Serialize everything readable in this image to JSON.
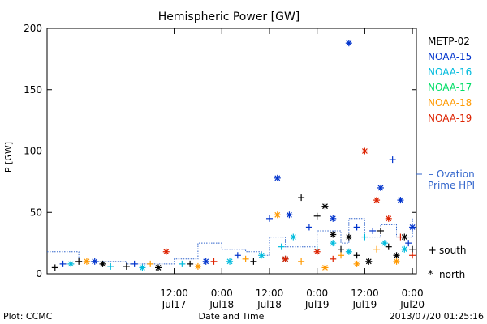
{
  "chart_data": {
    "type": "scatter",
    "title": "Hemispheric Power [GW]",
    "ylabel": "P [GW]",
    "xlabel": "Date and Time",
    "ylim": [
      0,
      200
    ],
    "xlim": [
      "2013-07-16 04:00",
      "2013-07-20 01:00"
    ],
    "yticks": [
      0,
      50,
      100,
      150,
      200
    ],
    "xticks": [
      {
        "time": "2013-07-17 12:00",
        "line1": "12:00",
        "line2": "Jul17"
      },
      {
        "time": "2013-07-18 00:00",
        "line1": "0:00",
        "line2": "Jul18"
      },
      {
        "time": "2013-07-18 12:00",
        "line1": "12:00",
        "line2": "Jul18"
      },
      {
        "time": "2013-07-19 00:00",
        "line1": "0:00",
        "line2": "Jul19"
      },
      {
        "time": "2013-07-19 12:00",
        "line1": "12:00",
        "line2": "Jul19"
      },
      {
        "time": "2013-07-20 00:00",
        "line1": "0:00",
        "line2": "Jul20"
      }
    ],
    "series": [
      {
        "name": "METP-02",
        "color": "#000000",
        "points": [
          [
            "2013-07-16 06:00",
            5,
            "+"
          ],
          [
            "2013-07-16 12:00",
            10,
            "+"
          ],
          [
            "2013-07-16 18:00",
            8,
            "*"
          ],
          [
            "2013-07-17 00:00",
            6,
            "+"
          ],
          [
            "2013-07-17 08:00",
            5,
            "*"
          ],
          [
            "2013-07-17 16:00",
            8,
            "+"
          ],
          [
            "2013-07-18 08:00",
            10,
            "+"
          ],
          [
            "2013-07-18 16:00",
            12,
            "*"
          ],
          [
            "2013-07-18 20:00",
            62,
            "+"
          ],
          [
            "2013-07-19 00:00",
            47,
            "+"
          ],
          [
            "2013-07-19 02:00",
            55,
            "*"
          ],
          [
            "2013-07-19 04:00",
            32,
            "*"
          ],
          [
            "2013-07-19 06:00",
            20,
            "+"
          ],
          [
            "2013-07-19 08:00",
            30,
            "*"
          ],
          [
            "2013-07-19 10:00",
            15,
            "+"
          ],
          [
            "2013-07-19 13:00",
            10,
            "*"
          ],
          [
            "2013-07-19 16:00",
            35,
            "+"
          ],
          [
            "2013-07-19 18:00",
            22,
            "+"
          ],
          [
            "2013-07-19 20:00",
            15,
            "*"
          ],
          [
            "2013-07-19 22:00",
            30,
            "*"
          ],
          [
            "2013-07-20 00:00",
            20,
            "+"
          ]
        ]
      },
      {
        "name": "NOAA-15",
        "color": "#0033cc",
        "points": [
          [
            "2013-07-16 08:00",
            8,
            "+"
          ],
          [
            "2013-07-16 16:00",
            10,
            "*"
          ],
          [
            "2013-07-17 02:00",
            8,
            "+"
          ],
          [
            "2013-07-17 20:00",
            10,
            "*"
          ],
          [
            "2013-07-18 04:00",
            15,
            "+"
          ],
          [
            "2013-07-18 12:00",
            45,
            "+"
          ],
          [
            "2013-07-18 14:00",
            78,
            "*"
          ],
          [
            "2013-07-18 17:00",
            48,
            "*"
          ],
          [
            "2013-07-18 22:00",
            38,
            "+"
          ],
          [
            "2013-07-19 04:00",
            45,
            "*"
          ],
          [
            "2013-07-19 08:00",
            188,
            "*"
          ],
          [
            "2013-07-19 10:00",
            38,
            "+"
          ],
          [
            "2013-07-19 14:00",
            35,
            "+"
          ],
          [
            "2013-07-19 16:00",
            70,
            "*"
          ],
          [
            "2013-07-19 19:00",
            93,
            "+"
          ],
          [
            "2013-07-19 21:00",
            60,
            "*"
          ],
          [
            "2013-07-19 23:00",
            25,
            "+"
          ],
          [
            "2013-07-20 00:00",
            38,
            "*"
          ]
        ]
      },
      {
        "name": "NOAA-16",
        "color": "#00bbdd",
        "points": [
          [
            "2013-07-16 10:00",
            8,
            "*"
          ],
          [
            "2013-07-16 20:00",
            6,
            "+"
          ],
          [
            "2013-07-17 04:00",
            5,
            "*"
          ],
          [
            "2013-07-17 14:00",
            8,
            "+"
          ],
          [
            "2013-07-18 02:00",
            10,
            "*"
          ],
          [
            "2013-07-18 10:00",
            15,
            "*"
          ],
          [
            "2013-07-18 15:00",
            22,
            "+"
          ],
          [
            "2013-07-18 18:00",
            30,
            "*"
          ],
          [
            "2013-07-19 00:00",
            20,
            "+"
          ],
          [
            "2013-07-19 04:00",
            25,
            "*"
          ],
          [
            "2013-07-19 08:00",
            18,
            "*"
          ],
          [
            "2013-07-19 12:00",
            30,
            "+"
          ],
          [
            "2013-07-19 17:00",
            25,
            "*"
          ],
          [
            "2013-07-19 22:00",
            20,
            "*"
          ]
        ]
      },
      {
        "name": "NOAA-17",
        "color": "#00dd66",
        "points": []
      },
      {
        "name": "NOAA-18",
        "color": "#ff9900",
        "points": [
          [
            "2013-07-16 14:00",
            10,
            "*"
          ],
          [
            "2013-07-17 06:00",
            8,
            "+"
          ],
          [
            "2013-07-17 18:00",
            6,
            "*"
          ],
          [
            "2013-07-18 06:00",
            12,
            "+"
          ],
          [
            "2013-07-18 14:00",
            48,
            "*"
          ],
          [
            "2013-07-18 20:00",
            10,
            "+"
          ],
          [
            "2013-07-19 02:00",
            5,
            "*"
          ],
          [
            "2013-07-19 06:00",
            15,
            "+"
          ],
          [
            "2013-07-19 10:00",
            8,
            "*"
          ],
          [
            "2013-07-19 15:00",
            20,
            "+"
          ],
          [
            "2013-07-19 20:00",
            10,
            "*"
          ]
        ]
      },
      {
        "name": "NOAA-19",
        "color": "#dd2200",
        "points": [
          [
            "2013-07-17 10:00",
            18,
            "*"
          ],
          [
            "2013-07-17 22:00",
            10,
            "+"
          ],
          [
            "2013-07-18 16:00",
            12,
            "*"
          ],
          [
            "2013-07-19 00:00",
            18,
            "*"
          ],
          [
            "2013-07-19 04:00",
            12,
            "+"
          ],
          [
            "2013-07-19 12:00",
            100,
            "*"
          ],
          [
            "2013-07-19 15:00",
            60,
            "*"
          ],
          [
            "2013-07-19 18:00",
            45,
            "*"
          ],
          [
            "2013-07-19 21:00",
            30,
            "+"
          ],
          [
            "2013-07-20 00:00",
            15,
            "+"
          ]
        ]
      }
    ],
    "ovation": {
      "label_line1": "– Ovation",
      "label_line2": "Prime HPI",
      "color": "#3366cc",
      "points": [
        [
          "2013-07-16 04:00",
          18
        ],
        [
          "2013-07-16 12:00",
          10
        ],
        [
          "2013-07-17 00:00",
          8
        ],
        [
          "2013-07-17 12:00",
          12
        ],
        [
          "2013-07-17 18:00",
          25
        ],
        [
          "2013-07-18 00:00",
          20
        ],
        [
          "2013-07-18 06:00",
          18
        ],
        [
          "2013-07-18 10:00",
          15
        ],
        [
          "2013-07-18 12:00",
          30
        ],
        [
          "2013-07-18 16:00",
          22
        ],
        [
          "2013-07-19 00:00",
          35
        ],
        [
          "2013-07-19 06:00",
          25
        ],
        [
          "2013-07-19 08:00",
          45
        ],
        [
          "2013-07-19 12:00",
          30
        ],
        [
          "2013-07-19 16:00",
          40
        ],
        [
          "2013-07-19 20:00",
          30
        ],
        [
          "2013-07-20 00:00",
          45
        ]
      ]
    },
    "symbol_legend": [
      {
        "symbol": "+",
        "label": "south"
      },
      {
        "symbol": "*",
        "label": "north"
      }
    ],
    "footer": {
      "left": "Plot: CCMC",
      "right": "2013/07/20 01:25:16"
    }
  }
}
